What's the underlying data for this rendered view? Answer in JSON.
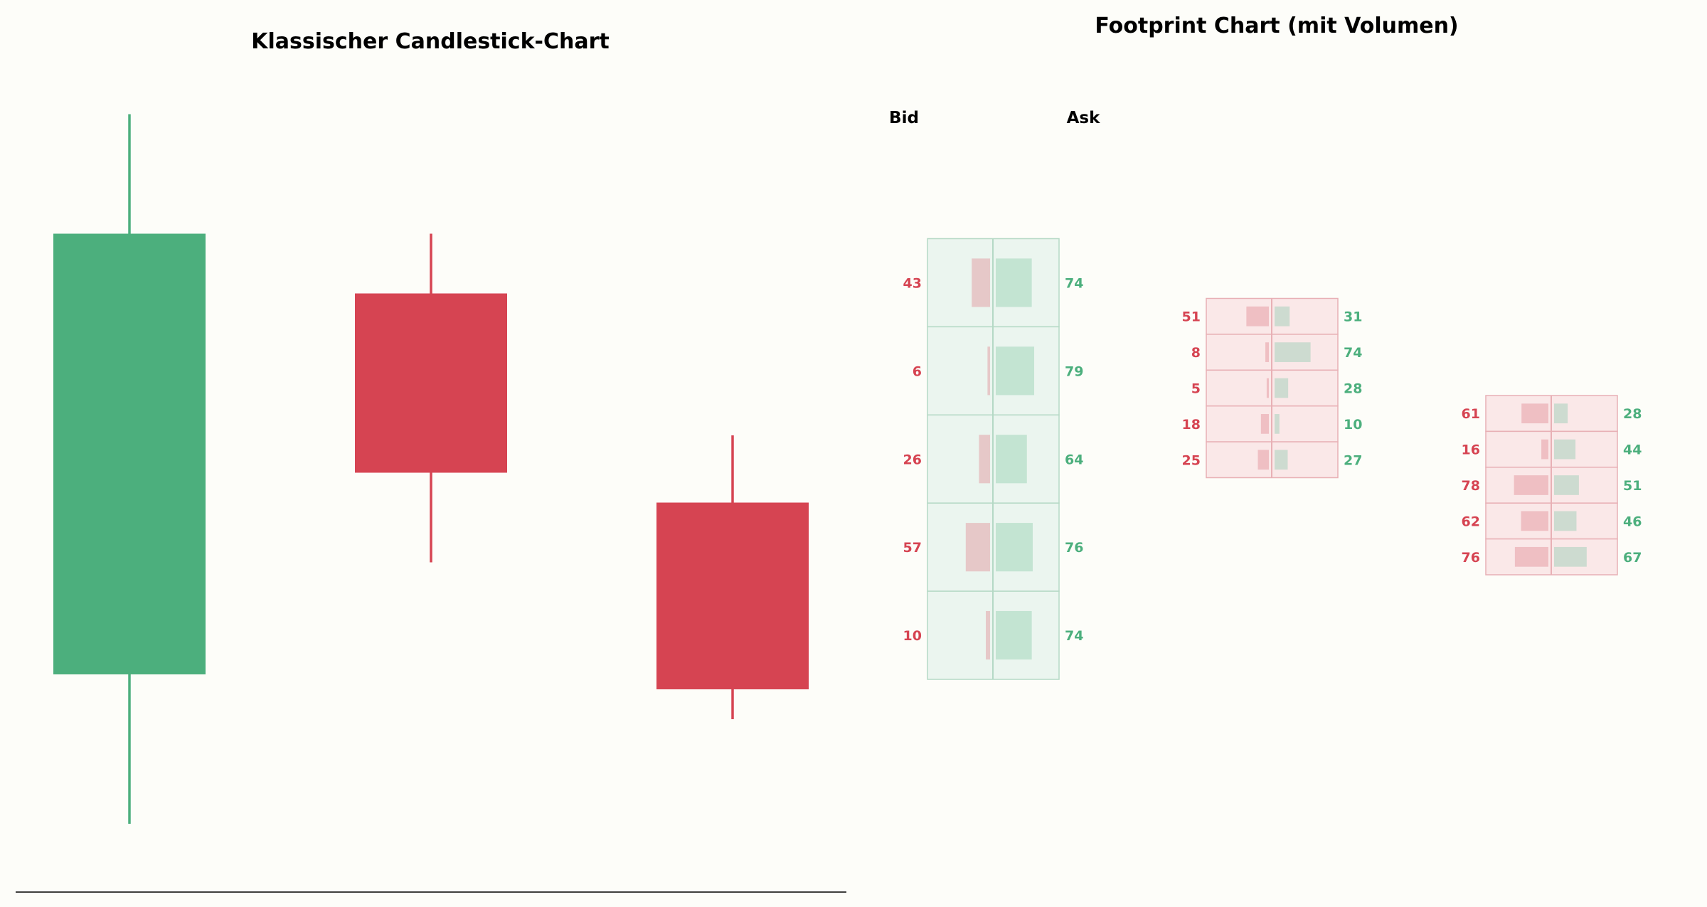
{
  "colors": {
    "bull": "#4caf7d",
    "bear": "#d64452",
    "background": "#fdfdf9",
    "bull_cell_bg": "#ebf5ef",
    "bull_cell_border": "#b5d9c5",
    "bear_cell_bg": "#fae8e8",
    "bear_cell_border": "#e8b0b5",
    "bid_bar_on_bull": "#e6c8c8",
    "ask_bar_on_bull": "#c3e4d2",
    "bid_bar_on_bear": "#efbfc3",
    "ask_bar_on_bear": "#cddbd0"
  },
  "chart_data": [
    {
      "type": "candlestick",
      "title": "Klassischer Candlestick-Chart",
      "grid": false,
      "ylim": [
        0,
        100
      ],
      "candles": [
        {
          "open": 24,
          "high": 99,
          "low": 4,
          "close": 83,
          "direction": "up"
        },
        {
          "open": 75,
          "high": 83,
          "low": 39,
          "close": 51,
          "direction": "down"
        },
        {
          "open": 47,
          "high": 56,
          "low": 18,
          "close": 22,
          "direction": "down"
        }
      ]
    },
    {
      "type": "footprint",
      "title": "Footprint Chart (mit Volumen)",
      "bid_label": "Bid",
      "ask_label": "Ask",
      "ylim": [
        0,
        100
      ],
      "candles": [
        {
          "direction": "up",
          "top": 83,
          "bottom": 24,
          "levels": [
            {
              "bid": 43,
              "ask": 74
            },
            {
              "bid": 6,
              "ask": 79
            },
            {
              "bid": 26,
              "ask": 64
            },
            {
              "bid": 57,
              "ask": 76
            },
            {
              "bid": 10,
              "ask": 74
            }
          ]
        },
        {
          "direction": "down",
          "top": 75,
          "bottom": 51,
          "levels": [
            {
              "bid": 51,
              "ask": 31
            },
            {
              "bid": 8,
              "ask": 74
            },
            {
              "bid": 5,
              "ask": 28
            },
            {
              "bid": 18,
              "ask": 10
            },
            {
              "bid": 25,
              "ask": 27
            }
          ]
        },
        {
          "direction": "down",
          "top": 62,
          "bottom": 38,
          "levels": [
            {
              "bid": 61,
              "ask": 28
            },
            {
              "bid": 16,
              "ask": 44
            },
            {
              "bid": 78,
              "ask": 51
            },
            {
              "bid": 62,
              "ask": 46
            },
            {
              "bid": 76,
              "ask": 67
            }
          ]
        }
      ]
    }
  ]
}
